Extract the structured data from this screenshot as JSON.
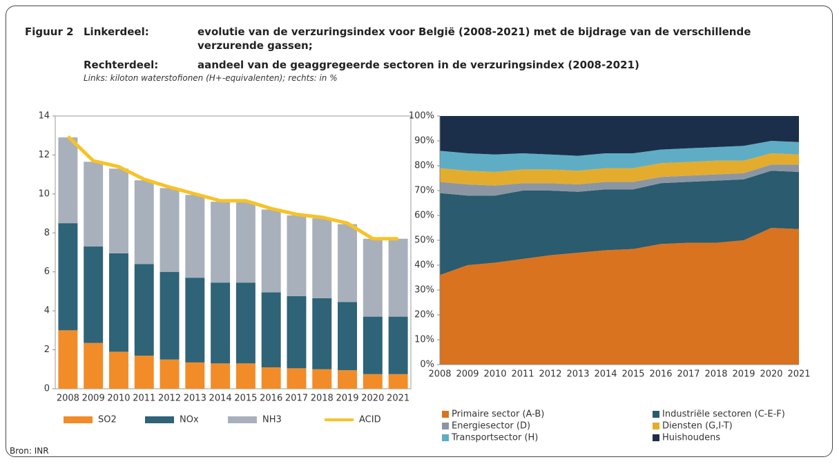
{
  "header": {
    "label": "Figuur 2",
    "left_label": "Linkerdeel:",
    "left_text": "evolutie van de verzuringsindex voor België (2008-2021) met de bijdrage van de verschillende verzurende gassen;",
    "right_label": "Rechterdeel:",
    "right_text": "aandeel van de geaggregeerde sectoren in de verzuringsindex (2008-2021)",
    "subtitle": "Links: kiloton waterstofionen (H+-equivalenten); rechts: in %"
  },
  "chart_data": [
    {
      "type": "bar",
      "stacked": true,
      "grid": false,
      "legend": "bottom",
      "categories": [
        "2008",
        "2009",
        "2010",
        "2011",
        "2012",
        "2013",
        "2014",
        "2015",
        "2016",
        "2017",
        "2018",
        "2019",
        "2020",
        "2021"
      ],
      "ylim": [
        0,
        14
      ],
      "yticks": [
        0,
        2,
        4,
        6,
        8,
        10,
        12,
        14
      ],
      "series": [
        {
          "name": "SO2",
          "color": "#f28c28",
          "values": [
            3.0,
            2.35,
            1.9,
            1.7,
            1.5,
            1.35,
            1.3,
            1.3,
            1.1,
            1.05,
            1.0,
            0.95,
            0.75,
            0.75
          ]
        },
        {
          "name": "NOx",
          "color": "#2e6378",
          "values": [
            5.5,
            4.95,
            5.05,
            4.7,
            4.5,
            4.35,
            4.15,
            4.15,
            3.85,
            3.7,
            3.65,
            3.5,
            2.95,
            2.95
          ]
        },
        {
          "name": "NH3",
          "color": "#a8b0bc",
          "values": [
            4.4,
            4.35,
            4.35,
            4.3,
            4.3,
            4.25,
            4.15,
            4.15,
            4.25,
            4.15,
            4.1,
            4.0,
            4.0,
            4.0
          ]
        },
        {
          "name": "ACID",
          "color": "#f7c325",
          "type": "line",
          "values": [
            12.95,
            11.7,
            11.4,
            10.75,
            10.35,
            10.0,
            9.65,
            9.65,
            9.25,
            8.95,
            8.8,
            8.5,
            7.7,
            7.7
          ]
        }
      ]
    },
    {
      "type": "area",
      "stacked": true,
      "grid": false,
      "legend": "bottom",
      "categories": [
        "2008",
        "2009",
        "2010",
        "2011",
        "2012",
        "2013",
        "2014",
        "2015",
        "2016",
        "2017",
        "2018",
        "2019",
        "2020",
        "2021"
      ],
      "ylim": [
        0,
        100
      ],
      "yticks": [
        {
          "value": 0,
          "label": "0%"
        },
        {
          "value": 10,
          "label": "10%"
        },
        {
          "value": 20,
          "label": "20%"
        },
        {
          "value": 30,
          "label": "30%"
        },
        {
          "value": 40,
          "label": "40%"
        },
        {
          "value": 50,
          "label": "50%"
        },
        {
          "value": 60,
          "label": "60%"
        },
        {
          "value": 70,
          "label": "70%"
        },
        {
          "value": 80,
          "label": "80%"
        },
        {
          "value": 90,
          "label": "90%"
        },
        {
          "value": 100,
          "label": "100%"
        }
      ],
      "series": [
        {
          "name": "Primaire sector (A-B)",
          "color": "#d9731f",
          "values": [
            36,
            40,
            41,
            42.5,
            44,
            45,
            46,
            46.5,
            48.5,
            49,
            49,
            50,
            55,
            54.5
          ]
        },
        {
          "name": "Industriële sectoren (C-E-F)",
          "color": "#2a5b6e",
          "values": [
            33,
            28,
            27,
            27.5,
            26,
            24.5,
            24.5,
            24,
            24.5,
            24.5,
            25,
            24.5,
            23,
            23
          ]
        },
        {
          "name": "Energiesector (D)",
          "color": "#8c96a3",
          "values": [
            4.5,
            4.5,
            4,
            3,
            3,
            3,
            3,
            3,
            2.5,
            2.5,
            2.5,
            2.5,
            2.5,
            3
          ]
        },
        {
          "name": "Diensten (G,I-T)",
          "color": "#e4ac2c",
          "values": [
            5.5,
            5.5,
            5.5,
            5.5,
            5.5,
            5.5,
            5.5,
            5.5,
            5.5,
            5.5,
            5.5,
            5,
            4.5,
            4
          ]
        },
        {
          "name": "Transportsector (H)",
          "color": "#5fadc4",
          "values": [
            7,
            7,
            7,
            6.5,
            6,
            6,
            6,
            6,
            5.5,
            5.5,
            5.5,
            6,
            5,
            5
          ]
        },
        {
          "name": "Huishoudens",
          "color": "#1b2f4b",
          "values": [
            14,
            15,
            15.5,
            15,
            15.5,
            16,
            15,
            15,
            13.5,
            13,
            12.5,
            12,
            10,
            10.5
          ]
        }
      ]
    }
  ],
  "source": "Bron: INR"
}
